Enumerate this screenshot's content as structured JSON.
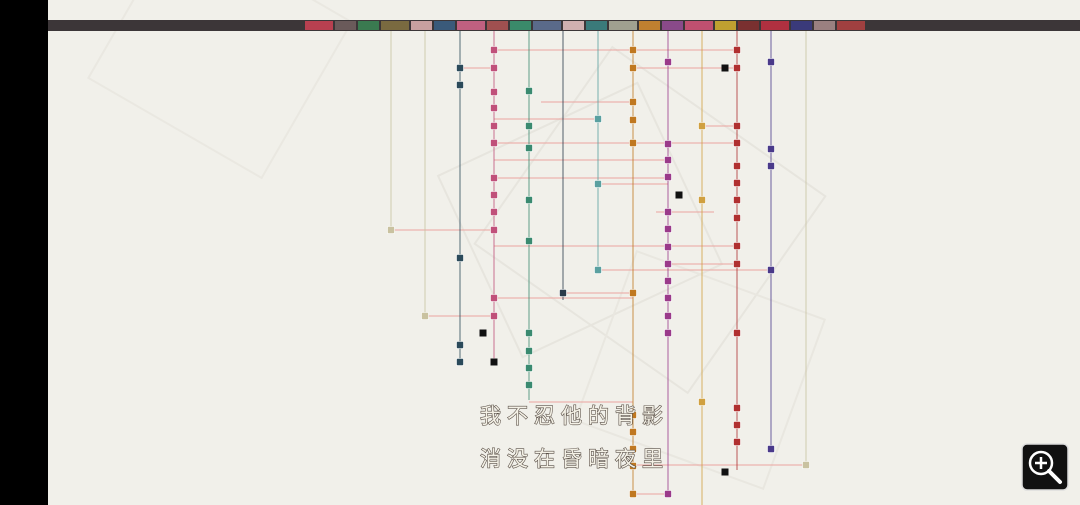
{
  "subtitles": [
    "我不忍他的背影",
    "消没在昏暗夜里"
  ]
}
